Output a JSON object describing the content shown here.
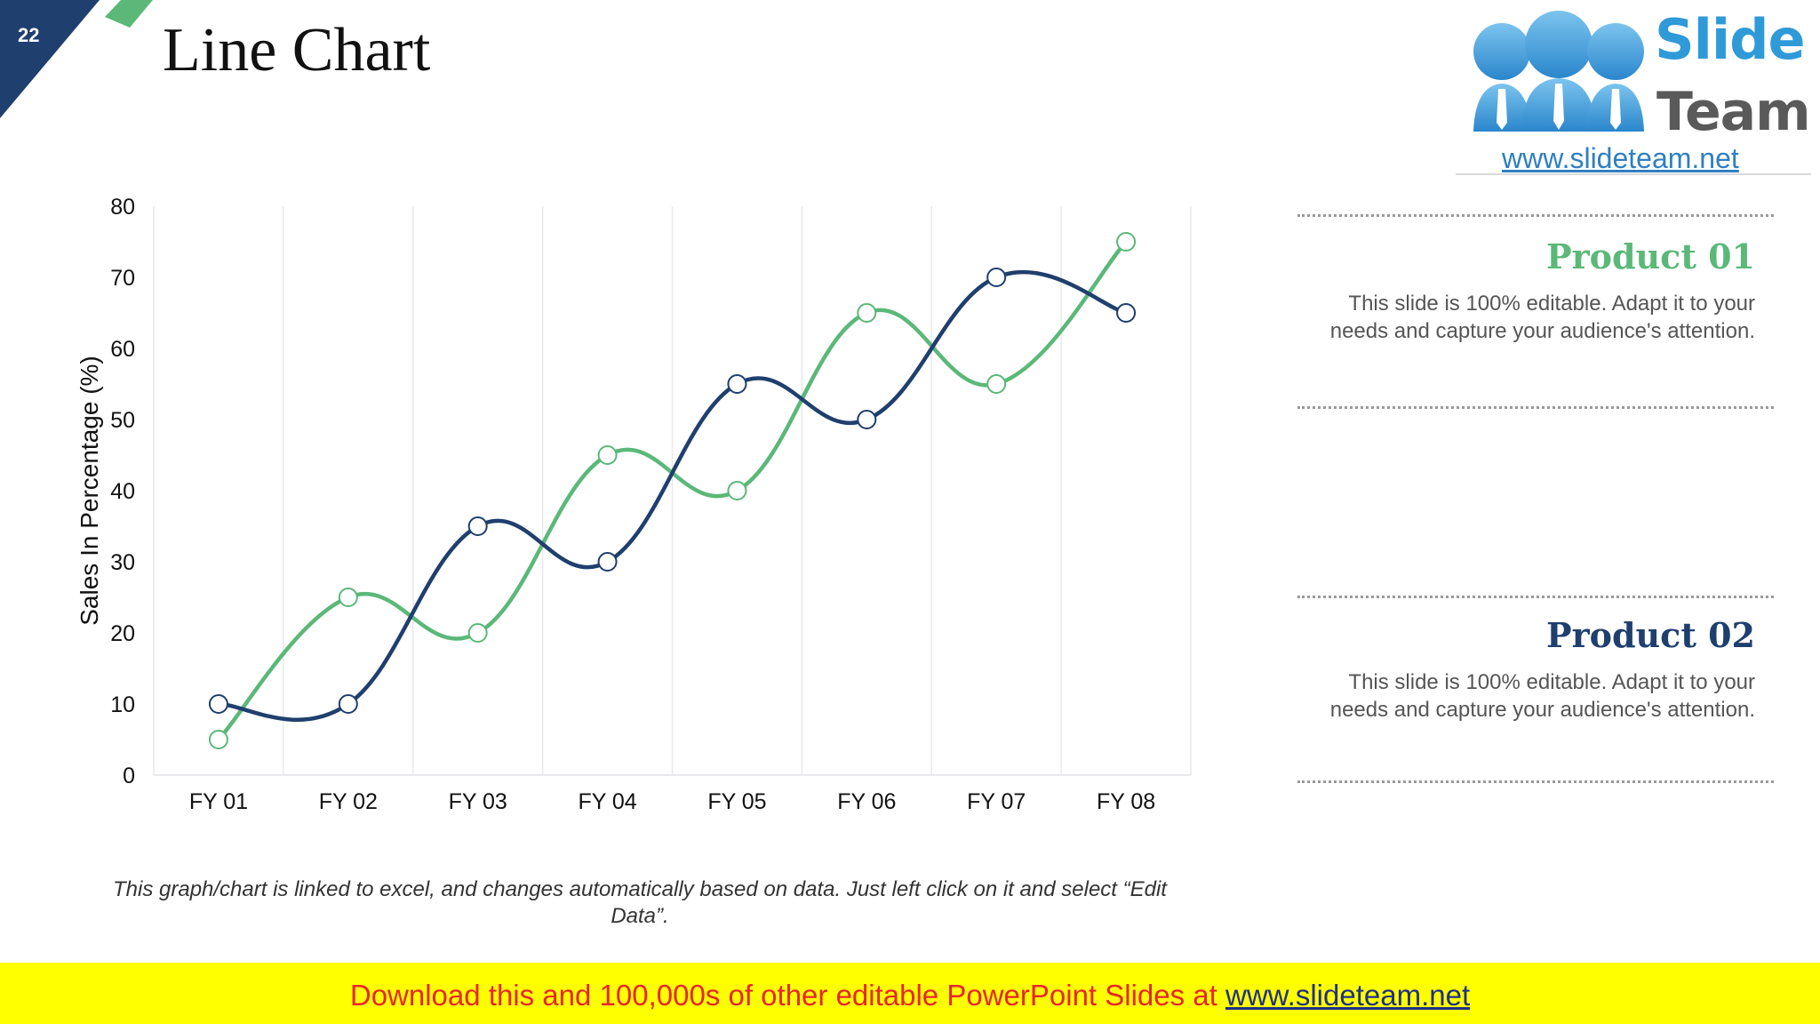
{
  "slide": {
    "number": "22",
    "title": "Line Chart",
    "note": "This graph/chart is linked to excel, and changes automatically based on data. Just left click on it and select “Edit Data”."
  },
  "logo": {
    "word1": "Slide",
    "word2": "Team",
    "url": "www.slideteam.net"
  },
  "colors": {
    "navy": "#1f3f6e",
    "green": "#5bb879",
    "yellow": "#ffff00",
    "red": "#e8262b"
  },
  "legend": [
    {
      "title": "Product 01",
      "text": "This slide is 100% editable. Adapt it to your needs and capture your audience's attention.",
      "color": "#5bb879"
    },
    {
      "title": "Product 02",
      "text": "This slide is 100% editable. Adapt it to your needs and capture your audience's attention.",
      "color": "#1f3f6e"
    }
  ],
  "banner": {
    "text": "Download this and 100,000s of other editable PowerPoint Slides at ",
    "link": "www.slideteam.net"
  },
  "chart_data": {
    "type": "line",
    "title": "",
    "xlabel": "",
    "ylabel": "Sales In Percentage (%)",
    "categories": [
      "FY 01",
      "FY 02",
      "FY 03",
      "FY 04",
      "FY 05",
      "FY 06",
      "FY 07",
      "FY 08"
    ],
    "ylim": [
      0,
      80
    ],
    "yticks": [
      0,
      10,
      20,
      30,
      40,
      50,
      60,
      70,
      80
    ],
    "grid": "vertical",
    "smooth": true,
    "legend": "right side panel",
    "series": [
      {
        "name": "Product 01",
        "color": "#5bb879",
        "values": [
          5,
          25,
          20,
          45,
          40,
          65,
          55,
          75
        ]
      },
      {
        "name": "Product 02",
        "color": "#1f3f6e",
        "values": [
          10,
          10,
          35,
          30,
          55,
          50,
          70,
          65
        ]
      }
    ]
  }
}
